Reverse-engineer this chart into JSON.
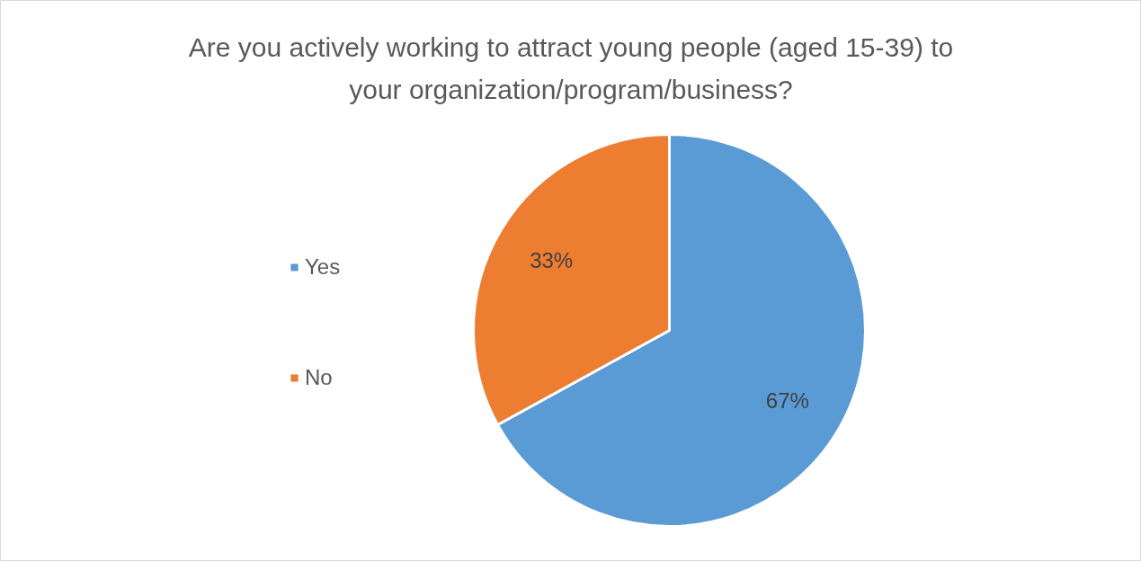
{
  "chart_data": {
    "type": "pie",
    "title": "Are you actively working to attract young people (aged 15-39) to\nyour organization/program/business?",
    "categories": [
      "Yes",
      "No"
    ],
    "values": [
      67,
      33
    ],
    "colors": [
      "#5b9bd5",
      "#ed7d31"
    ],
    "value_labels": [
      "67%",
      "33%"
    ],
    "legend": "left"
  }
}
